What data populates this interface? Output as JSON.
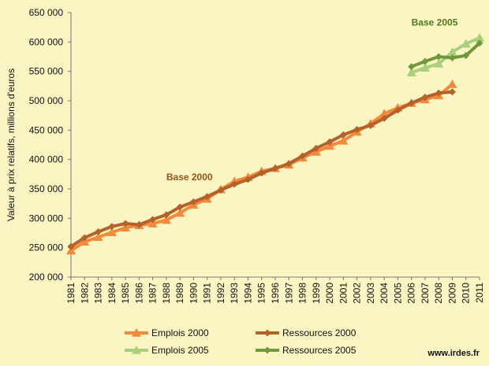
{
  "chart_data": {
    "type": "line",
    "title": "",
    "ylabel": "Valeur à prix relatifs, millions d'euros",
    "xlabel": "",
    "ylim": [
      200000,
      650000
    ],
    "yticks": [
      200000,
      250000,
      300000,
      350000,
      400000,
      450000,
      500000,
      550000,
      600000,
      650000
    ],
    "ytick_labels": [
      "200 000",
      "250 000",
      "300 000",
      "350 000",
      "400 000",
      "450 000",
      "500 000",
      "550 000",
      "600 000",
      "650 000"
    ],
    "grid": false,
    "legend_position": "bottom",
    "categories": [
      "1981",
      "1982",
      "1983",
      "1984",
      "1985",
      "1986",
      "1987",
      "1988",
      "1989",
      "1990",
      "1991",
      "1992",
      "1993",
      "1994",
      "1995",
      "1996",
      "1997",
      "1998",
      "1999",
      "2000",
      "2001",
      "2002",
      "2003",
      "2004",
      "2005",
      "2006",
      "2007",
      "2008",
      "2009",
      "2010",
      "2011"
    ],
    "series": [
      {
        "name": "Emplois 2000",
        "color": "#f28a3c",
        "marker": "triangle",
        "values": [
          245000,
          260000,
          268000,
          276000,
          284000,
          288000,
          291000,
          297000,
          309000,
          323000,
          333000,
          349000,
          363000,
          370000,
          380000,
          385000,
          391000,
          403000,
          413000,
          423000,
          432000,
          447000,
          461000,
          478000,
          488000,
          496000,
          502000,
          509000,
          528000,
          null,
          null
        ]
      },
      {
        "name": "Ressources 2000",
        "color": "#b5622a",
        "marker": "diamond",
        "values": [
          252000,
          267000,
          277000,
          286000,
          291000,
          289000,
          298000,
          306000,
          319000,
          328000,
          337000,
          348000,
          358000,
          366000,
          377000,
          385000,
          393000,
          406000,
          419000,
          430000,
          442000,
          451000,
          458000,
          470000,
          484000,
          496000,
          506000,
          513000,
          515000,
          null,
          null
        ]
      },
      {
        "name": "Emplois 2005",
        "color": "#a8d07a",
        "marker": "triangle",
        "values": [
          null,
          null,
          null,
          null,
          null,
          null,
          null,
          null,
          null,
          null,
          null,
          null,
          null,
          null,
          null,
          null,
          null,
          null,
          null,
          null,
          null,
          null,
          null,
          null,
          null,
          548000,
          556000,
          563000,
          583000,
          597000,
          607000
        ]
      },
      {
        "name": "Ressources 2005",
        "color": "#6f9a3c",
        "marker": "diamond",
        "values": [
          null,
          null,
          null,
          null,
          null,
          null,
          null,
          null,
          null,
          null,
          null,
          null,
          null,
          null,
          null,
          null,
          null,
          null,
          null,
          null,
          null,
          null,
          null,
          null,
          null,
          558000,
          567000,
          575000,
          573000,
          577000,
          598000
        ]
      }
    ],
    "annotations": [
      {
        "text": "Base 2000",
        "x": "1988",
        "y": 365000,
        "color": "#9a5416"
      },
      {
        "text": "Base 2005",
        "x": "2006",
        "y": 628000,
        "color": "#4f7a22"
      }
    ]
  },
  "source_text": "www.irdes.fr"
}
